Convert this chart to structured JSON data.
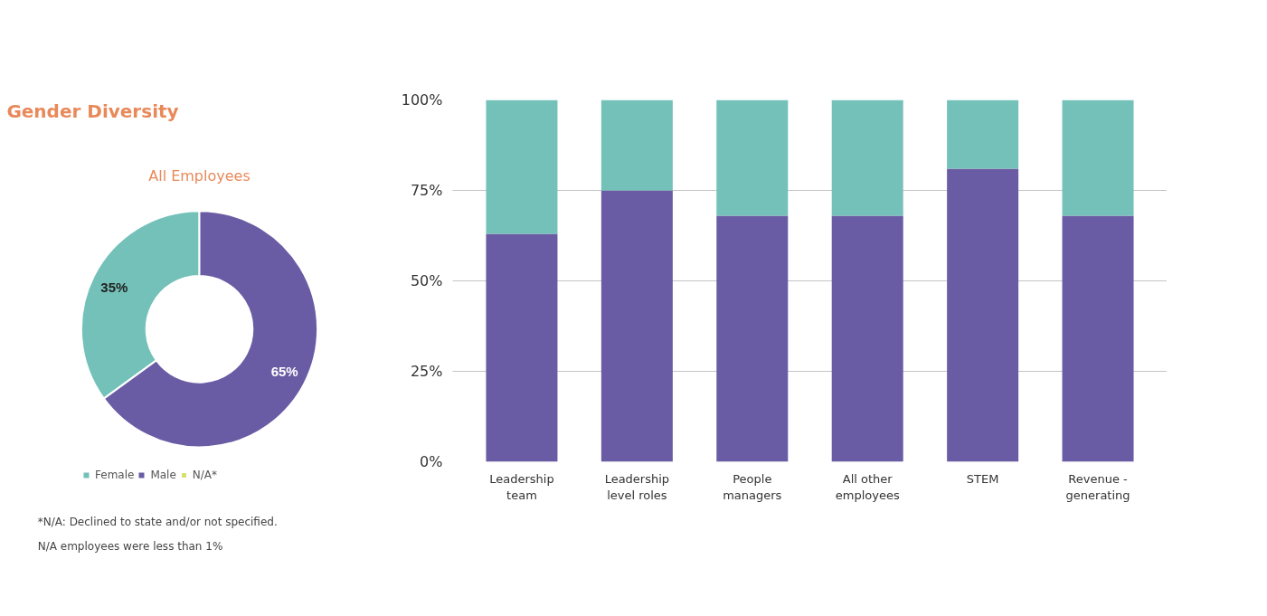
{
  "chart_data": [
    {
      "type": "donut",
      "title": "Gender Diversity",
      "subtitle": "All Employees",
      "categories": [
        "Female",
        "Male",
        "N/A*"
      ],
      "values": [
        35,
        65,
        0
      ],
      "colors": [
        "#73c1b9",
        "#6a5ca4",
        "#d7e06a"
      ],
      "value_labels": [
        "35%",
        "65%",
        null
      ],
      "legend": "bottom",
      "annotations": [
        "*N/A: Declined to state and/or not specified.",
        "N/A employees were less than 1%"
      ]
    },
    {
      "type": "bar",
      "stacked": true,
      "categories": [
        "Leadership team",
        "Leadership level roles",
        "People managers",
        "All other employees",
        "STEM",
        "Revenue - generating"
      ],
      "series": [
        {
          "color": "#6a5ca4",
          "values": [
            63,
            75,
            68,
            68,
            81,
            68
          ]
        },
        {
          "color": "#73c1b9",
          "values": [
            37,
            25,
            32,
            32,
            19,
            32
          ]
        }
      ],
      "ylim": [
        0,
        100
      ],
      "yticks": [
        {
          "value": 0,
          "label": "0%"
        },
        {
          "value": 25,
          "label": "25%"
        },
        {
          "value": 50,
          "label": "50%"
        },
        {
          "value": 75,
          "label": "75%"
        },
        {
          "value": 100,
          "label": "100%"
        }
      ],
      "grid": "y"
    }
  ]
}
